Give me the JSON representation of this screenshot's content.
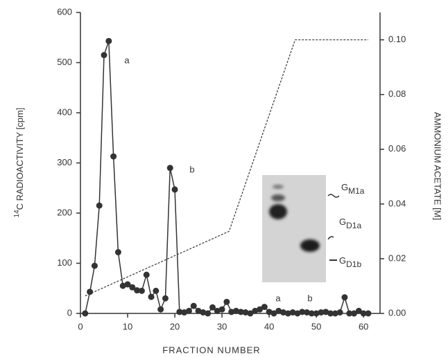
{
  "chart_data": {
    "type": "line",
    "ylabel": {
      "sup": "14",
      "text": "C RADIOACTIVITY [cpm]"
    },
    "xlabel": "FRACTION NUMBER",
    "y2label": "AMMONIUM ACETATE [M]",
    "xlim": [
      0,
      63.5
    ],
    "xticks": [
      0,
      10,
      20,
      30,
      40,
      50,
      60
    ],
    "ylim": [
      0,
      600
    ],
    "yticks": [
      0,
      100,
      200,
      300,
      400,
      500,
      600
    ],
    "y2lim": [
      0,
      0.11
    ],
    "y2ticks": [
      {
        "value": 0,
        "label": "0.00"
      },
      0.02,
      0.04,
      0.06,
      0.08,
      {
        "value": 0.1,
        "label": "0.10"
      }
    ],
    "series": [
      {
        "color": "#333333",
        "x": [
          1,
          2,
          3,
          4,
          5,
          6,
          7,
          8,
          9,
          10,
          11,
          12,
          13,
          14,
          15,
          16,
          17,
          18,
          19,
          20,
          21,
          22,
          23,
          24,
          25,
          26,
          27,
          28,
          29,
          30,
          31,
          32,
          33,
          34,
          35,
          36,
          37,
          38,
          39,
          40,
          41,
          42,
          43,
          44,
          45,
          46,
          47,
          48,
          49,
          50,
          51,
          52,
          53,
          54,
          55,
          56,
          57,
          58,
          59,
          60,
          61
        ],
        "values": [
          0,
          43,
          95,
          215,
          515,
          543,
          313,
          122,
          55,
          58,
          52,
          46,
          45,
          77,
          33,
          45,
          8,
          30,
          290,
          247,
          3,
          2,
          5,
          15,
          5,
          2,
          0,
          12,
          5,
          8,
          23,
          3,
          5,
          3,
          2,
          0,
          5,
          8,
          13,
          3,
          0,
          5,
          2,
          0,
          2,
          0,
          3,
          2,
          0,
          0,
          2,
          3,
          0,
          0,
          2,
          32,
          0,
          0,
          5,
          0,
          0
        ]
      },
      {
        "color": "#333333",
        "axis": "y2",
        "dashed": true,
        "x": [
          1,
          31.5,
          45.5,
          61
        ],
        "values": [
          0.0064,
          0.03,
          0.1,
          0.1
        ]
      }
    ],
    "annotations": [
      "a",
      "b"
    ],
    "inset": {
      "lanes": [
        "a",
        "b"
      ],
      "bands": [
        {
          "name": "G",
          "sub": "M1a"
        },
        {
          "name": "G",
          "sub": "D1a"
        },
        {
          "name": "G",
          "sub": "D1b"
        }
      ]
    }
  }
}
